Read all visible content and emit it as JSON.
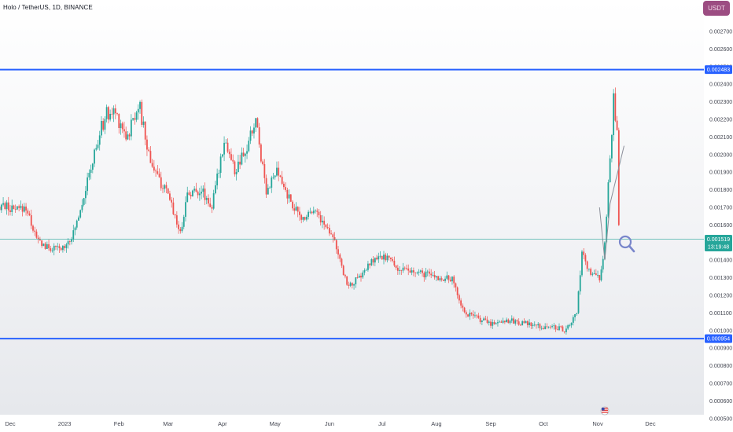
{
  "header": {
    "title": "Holo / TetherUS, 1D, BINANCE",
    "currency_button": "USDT"
  },
  "colors": {
    "up": "#26a69a",
    "down": "#ef5350",
    "resistance_line": "#2962ff",
    "support_line": "#2962ff",
    "current_price_line": "#26a69a",
    "price_tag_bg": "#2962ff",
    "current_tag_bg": "#26a69a",
    "icon_color": "#7986cb"
  },
  "chart_data": {
    "type": "candlestick",
    "x_tick_labels": [
      "Dec",
      "2023",
      "Feb",
      "Mar",
      "Apr",
      "May",
      "Jun",
      "Jul",
      "Aug",
      "Sep",
      "Oct",
      "Nov",
      "Dec"
    ],
    "y_tick_labels": [
      "0.002700",
      "0.002600",
      "0.002500",
      "0.002400",
      "0.002300",
      "0.002200",
      "0.002100",
      "0.002000",
      "0.001900",
      "0.001800",
      "0.001700",
      "0.001600",
      "0.001400",
      "0.001300",
      "0.001200",
      "0.001100",
      "0.001000",
      "0.000900",
      "0.000800",
      "0.000700",
      "0.000600",
      "0.000500"
    ],
    "ylim": [
      0.0005,
      0.0028
    ],
    "horizontal_lines": [
      {
        "label": "0.002483",
        "value": 0.002483
      },
      {
        "label": "0.000954",
        "value": 0.000954
      }
    ],
    "current_price": {
      "label": "0.001519",
      "countdown": "13:19:48",
      "value": 0.001519
    },
    "price_path": [
      {
        "date": "2022-11-20",
        "close": 0.00165
      },
      {
        "date": "2022-11-26",
        "close": 0.00172
      },
      {
        "date": "2022-12-03",
        "close": 0.00168
      },
      {
        "date": "2022-12-10",
        "close": 0.0017
      },
      {
        "date": "2022-12-16",
        "close": 0.00152
      },
      {
        "date": "2022-12-22",
        "close": 0.00147
      },
      {
        "date": "2022-12-30",
        "close": 0.00146
      },
      {
        "date": "2023-01-06",
        "close": 0.00155
      },
      {
        "date": "2023-01-12",
        "close": 0.00177
      },
      {
        "date": "2023-01-18",
        "close": 0.002
      },
      {
        "date": "2023-01-24",
        "close": 0.00222
      },
      {
        "date": "2023-01-30",
        "close": 0.00224
      },
      {
        "date": "2023-02-06",
        "close": 0.0021
      },
      {
        "date": "2023-02-12",
        "close": 0.0023
      },
      {
        "date": "2023-02-18",
        "close": 0.002
      },
      {
        "date": "2023-02-24",
        "close": 0.00185
      },
      {
        "date": "2023-03-02",
        "close": 0.00175
      },
      {
        "date": "2023-03-08",
        "close": 0.00155
      },
      {
        "date": "2023-03-12",
        "close": 0.00178
      },
      {
        "date": "2023-03-20",
        "close": 0.0018
      },
      {
        "date": "2023-03-26",
        "close": 0.0017
      },
      {
        "date": "2023-04-02",
        "close": 0.0021
      },
      {
        "date": "2023-04-08",
        "close": 0.0019
      },
      {
        "date": "2023-04-14",
        "close": 0.002
      },
      {
        "date": "2023-04-20",
        "close": 0.0022
      },
      {
        "date": "2023-04-26",
        "close": 0.0018
      },
      {
        "date": "2023-05-02",
        "close": 0.0019
      },
      {
        "date": "2023-05-09",
        "close": 0.00175
      },
      {
        "date": "2023-05-16",
        "close": 0.00163
      },
      {
        "date": "2023-05-23",
        "close": 0.0017
      },
      {
        "date": "2023-05-29",
        "close": 0.0016
      },
      {
        "date": "2023-06-03",
        "close": 0.00155
      },
      {
        "date": "2023-06-08",
        "close": 0.00135
      },
      {
        "date": "2023-06-12",
        "close": 0.00125
      },
      {
        "date": "2023-06-18",
        "close": 0.0013
      },
      {
        "date": "2023-06-26",
        "close": 0.0014
      },
      {
        "date": "2023-07-04",
        "close": 0.00142
      },
      {
        "date": "2023-07-10",
        "close": 0.00135
      },
      {
        "date": "2023-07-18",
        "close": 0.00133
      },
      {
        "date": "2023-07-26",
        "close": 0.00132
      },
      {
        "date": "2023-08-02",
        "close": 0.0013
      },
      {
        "date": "2023-08-10",
        "close": 0.00129
      },
      {
        "date": "2023-08-17",
        "close": 0.0011
      },
      {
        "date": "2023-08-22",
        "close": 0.00108
      },
      {
        "date": "2023-09-01",
        "close": 0.00104
      },
      {
        "date": "2023-09-10",
        "close": 0.00106
      },
      {
        "date": "2023-09-20",
        "close": 0.00104
      },
      {
        "date": "2023-09-30",
        "close": 0.00102
      },
      {
        "date": "2023-10-08",
        "close": 0.00102
      },
      {
        "date": "2023-10-14",
        "close": 0.001
      },
      {
        "date": "2023-10-20",
        "close": 0.0011
      },
      {
        "date": "2023-10-23",
        "close": 0.00143
      },
      {
        "date": "2023-10-28",
        "close": 0.00132
      },
      {
        "date": "2023-11-02",
        "close": 0.0013
      },
      {
        "date": "2023-11-05",
        "close": 0.00148
      },
      {
        "date": "2023-11-08",
        "close": 0.002
      },
      {
        "date": "2023-11-10",
        "close": 0.0023
      },
      {
        "date": "2023-11-12",
        "close": 0.0021
      },
      {
        "date": "2023-11-13",
        "close": 0.00158
      }
    ],
    "drawn_projection": [
      {
        "date": "2023-11-02",
        "value": 0.0017
      },
      {
        "date": "2023-11-05",
        "value": 0.0014
      },
      {
        "date": "2023-11-08",
        "value": 0.00172
      },
      {
        "date": "2023-11-16",
        "value": 0.00205
      }
    ]
  }
}
